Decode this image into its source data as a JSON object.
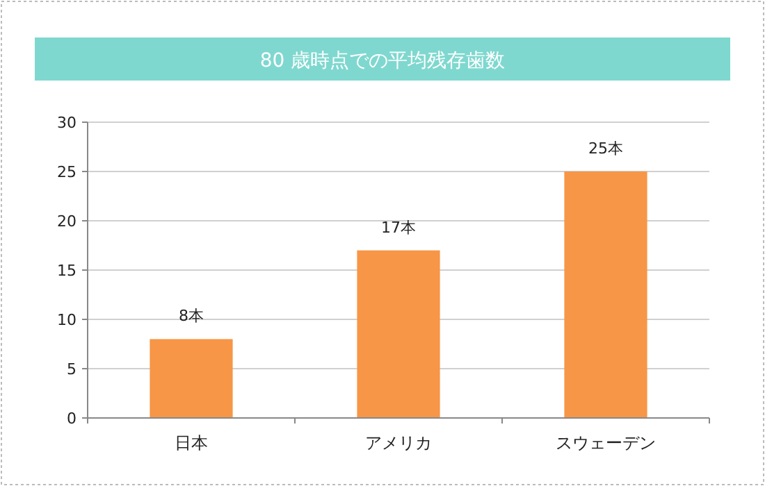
{
  "chart_data": {
    "type": "bar",
    "title": "80 歳時点での平均残存歯数",
    "categories": [
      "日本",
      "アメリカ",
      "スウェーデン"
    ],
    "values": [
      8,
      17,
      25
    ],
    "value_labels": [
      "8本",
      "17本",
      "25本"
    ],
    "color": "#f79646",
    "ylim": [
      0,
      30
    ],
    "yticks": [
      0,
      5,
      10,
      15,
      20,
      25,
      30
    ],
    "grid": "y"
  }
}
